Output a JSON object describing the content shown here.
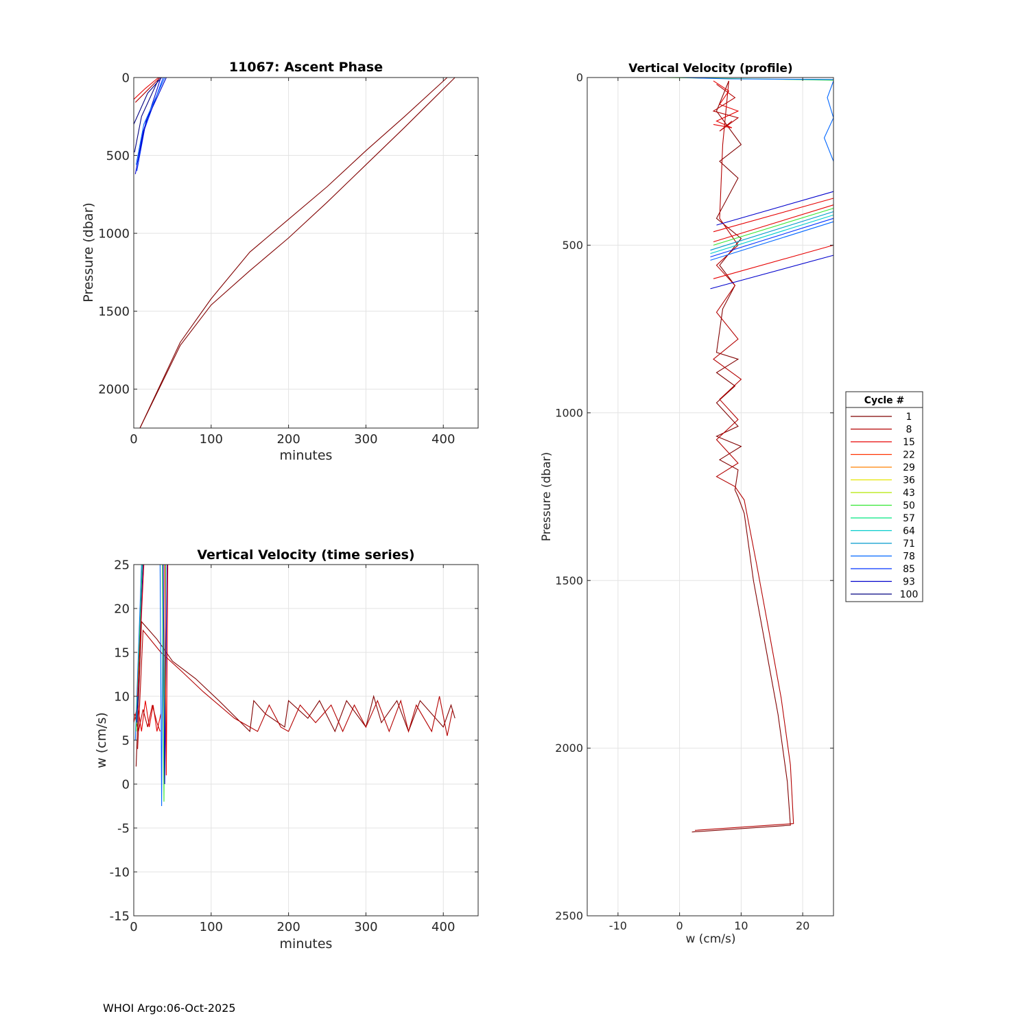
{
  "footer": "WHOI Argo:06-Oct-2025",
  "legend": {
    "title": "Cycle #",
    "entries": [
      "1",
      "8",
      "15",
      "22",
      "29",
      "36",
      "43",
      "50",
      "57",
      "64",
      "71",
      "78",
      "85",
      "93",
      "100"
    ],
    "colors": [
      "#800000",
      "#b30000",
      "#e60000",
      "#ff3300",
      "#ff8000",
      "#e6e600",
      "#b3e600",
      "#33e633",
      "#00e680",
      "#00cccc",
      "#0099cc",
      "#0066ff",
      "#0033ff",
      "#0000cc",
      "#000080"
    ]
  },
  "chart_data": [
    {
      "type": "line",
      "title": "11067: Ascent Phase",
      "xlabel": "minutes",
      "ylabel": "Pressure (dbar)",
      "xlim": [
        0,
        445
      ],
      "ylim": [
        0,
        2250
      ],
      "y_reversed": true,
      "xticks": [
        0,
        100,
        200,
        300,
        400
      ],
      "yticks": [
        0,
        500,
        1000,
        1500,
        2000
      ],
      "grid": true,
      "series": [
        {
          "x": [
            8,
            60,
            100,
            150,
            200,
            250,
            300,
            350,
            405
          ],
          "y": [
            2250,
            1700,
            1420,
            1120,
            910,
            700,
            470,
            250,
            0
          ],
          "color": "#800000"
        },
        {
          "x": [
            8,
            60,
            100,
            150,
            200,
            250,
            300,
            350,
            415
          ],
          "y": [
            2250,
            1720,
            1460,
            1240,
            1030,
            800,
            560,
            320,
            0
          ],
          "color": "#800000"
        },
        {
          "x": [
            2,
            12,
            35
          ],
          "y": [
            620,
            350,
            0
          ],
          "color": "#0000cc"
        },
        {
          "x": [
            4,
            14,
            38
          ],
          "y": [
            600,
            330,
            0
          ],
          "color": "#0033ff"
        },
        {
          "x": [
            3,
            13,
            40
          ],
          "y": [
            560,
            300,
            0
          ],
          "color": "#0066ff"
        },
        {
          "x": [
            5,
            16,
            42
          ],
          "y": [
            540,
            280,
            0
          ],
          "color": "#0000cc"
        },
        {
          "x": [
            1,
            10,
            33
          ],
          "y": [
            480,
            250,
            0
          ],
          "color": "#000080"
        },
        {
          "x": [
            0,
            18,
            36
          ],
          "y": [
            300,
            100,
            0
          ],
          "color": "#000080"
        },
        {
          "x": [
            0,
            15,
            32
          ],
          "y": [
            140,
            70,
            0
          ],
          "color": "#e60000"
        },
        {
          "x": [
            2,
            18,
            34
          ],
          "y": [
            160,
            80,
            0
          ],
          "color": "#b30000"
        }
      ]
    },
    {
      "type": "line",
      "title": "Vertical Velocity (time series)",
      "xlabel": "minutes",
      "ylabel": "w (cm/s)",
      "xlim": [
        0,
        445
      ],
      "ylim": [
        -15,
        25
      ],
      "xticks": [
        0,
        100,
        200,
        300,
        400
      ],
      "yticks": [
        -15,
        -10,
        -5,
        0,
        5,
        10,
        15,
        20,
        25
      ],
      "grid": true,
      "series": [
        {
          "x": [
            3,
            10,
            30,
            50,
            80,
            110,
            150,
            155,
            170,
            195,
            200,
            225,
            240,
            260,
            275,
            300,
            310,
            320,
            340,
            355,
            370,
            400,
            410,
            415
          ],
          "y": [
            2,
            18.5,
            16.5,
            14,
            12,
            9.5,
            6,
            9.5,
            8,
            6.5,
            9.5,
            7.5,
            9.5,
            6,
            9.5,
            6.5,
            10,
            7,
            9.5,
            6,
            9.5,
            6.5,
            9,
            7.5
          ],
          "color": "#800000"
        },
        {
          "x": [
            5,
            12,
            35,
            60,
            90,
            130,
            160,
            175,
            190,
            200,
            215,
            235,
            255,
            270,
            285,
            300,
            315,
            330,
            345,
            355,
            365,
            385,
            395,
            405,
            412
          ],
          "y": [
            4,
            17.5,
            15,
            13,
            10.5,
            7.5,
            6,
            9,
            6.5,
            6,
            9,
            7,
            9,
            6,
            9,
            6.5,
            9.5,
            6,
            9.5,
            6,
            9,
            6,
            10,
            5.5,
            8.5
          ],
          "color": "#b30000"
        },
        {
          "x": [
            0,
            5,
            10,
            15,
            20,
            25,
            30,
            35
          ],
          "y": [
            7,
            9,
            6,
            9.5,
            6.5,
            9,
            6,
            8
          ],
          "color": "#e60000"
        },
        {
          "x": [
            1,
            6,
            12,
            18,
            24,
            30,
            34
          ],
          "y": [
            8,
            6,
            8.5,
            6.5,
            9,
            7,
            6
          ],
          "color": "#b30000"
        },
        {
          "x": [
            2,
            10,
            12,
            34,
            36,
            38
          ],
          "y": [
            5,
            25,
            25,
            25,
            -2.5,
            25
          ],
          "color": "#0066ff"
        },
        {
          "x": [
            3,
            11,
            14,
            37,
            39,
            41
          ],
          "y": [
            6,
            25,
            25,
            25,
            -2,
            25
          ],
          "color": "#33e633"
        },
        {
          "x": [
            4,
            12,
            16,
            38,
            40,
            43
          ],
          "y": [
            7,
            25,
            25,
            25,
            0,
            25
          ],
          "color": "#0000cc"
        },
        {
          "x": [
            5,
            13,
            17,
            40,
            42,
            44
          ],
          "y": [
            10,
            25,
            25,
            25,
            1,
            25
          ],
          "color": "#e60000"
        }
      ]
    },
    {
      "type": "line",
      "title": "Vertical Velocity (profile)",
      "xlabel": "w (cm/s)",
      "ylabel": "Pressure (dbar)",
      "xlim": [
        -15,
        25
      ],
      "ylim": [
        0,
        2500
      ],
      "y_reversed": true,
      "xticks": [
        -10,
        0,
        10,
        20
      ],
      "yticks": [
        0,
        500,
        1000,
        1500,
        2000,
        2500
      ],
      "grid": true,
      "series": [
        {
          "x": [
            2,
            18,
            17.5,
            16,
            14,
            12,
            10.5,
            9.5,
            9,
            9.5,
            6.5,
            10,
            6,
            9.5,
            6,
            9,
            6,
            9.5,
            6,
            7,
            9,
            6.5,
            10,
            6,
            9.5,
            6.5,
            10,
            6,
            8
          ],
          "y": [
            2250,
            2230,
            2100,
            1900,
            1700,
            1500,
            1300,
            1250,
            1230,
            1170,
            1140,
            1100,
            1070,
            1040,
            970,
            920,
            880,
            840,
            820,
            690,
            620,
            560,
            480,
            420,
            300,
            250,
            200,
            100,
            10
          ],
          "color": "#800000"
        },
        {
          "x": [
            2.5,
            18.5,
            18,
            16.5,
            14.5,
            12.5,
            10.5,
            9,
            6,
            9.5,
            6,
            9.5,
            6.5,
            10,
            5.5,
            9.5,
            6,
            9,
            6,
            9.5,
            6.5,
            7,
            8
          ],
          "y": [
            2245,
            2225,
            2050,
            1850,
            1650,
            1450,
            1260,
            1220,
            1190,
            1150,
            1080,
            1020,
            960,
            900,
            840,
            780,
            700,
            620,
            560,
            500,
            420,
            200,
            10
          ],
          "color": "#b30000"
        },
        {
          "x": [
            5,
            25
          ],
          "y": [
            630,
            530
          ],
          "color": "#0000cc"
        },
        {
          "x": [
            5.5,
            25
          ],
          "y": [
            600,
            500
          ],
          "color": "#e60000"
        },
        {
          "x": [
            5,
            25
          ],
          "y": [
            545,
            430
          ],
          "color": "#0066ff"
        },
        {
          "x": [
            5,
            25
          ],
          "y": [
            535,
            420
          ],
          "color": "#0033ff"
        },
        {
          "x": [
            5,
            25
          ],
          "y": [
            525,
            410
          ],
          "color": "#00cccc"
        },
        {
          "x": [
            5,
            25
          ],
          "y": [
            515,
            400
          ],
          "color": "#0099cc"
        },
        {
          "x": [
            5.5,
            25
          ],
          "y": [
            500,
            390
          ],
          "color": "#33e633"
        },
        {
          "x": [
            5.5,
            25
          ],
          "y": [
            490,
            380
          ],
          "color": "#e60000"
        },
        {
          "x": [
            5.5,
            25
          ],
          "y": [
            460,
            360
          ],
          "color": "#e60000"
        },
        {
          "x": [
            6,
            25
          ],
          "y": [
            440,
            340
          ],
          "color": "#0000cc"
        },
        {
          "x": [
            -2.5,
            5,
            25
          ],
          "y": [
            0,
            2,
            8
          ],
          "color": "#33e633"
        },
        {
          "x": [
            0,
            8,
            25
          ],
          "y": [
            0,
            4,
            6
          ],
          "color": "#0066ff"
        },
        {
          "x": [
            5.5,
            8,
            6.5,
            9.5,
            6,
            8.5,
            5.5
          ],
          "y": [
            10,
            40,
            80,
            100,
            130,
            150,
            140
          ],
          "color": "#e60000"
        },
        {
          "x": [
            6,
            9,
            5.5,
            9.5,
            6.5,
            8.5
          ],
          "y": [
            20,
            60,
            100,
            120,
            160,
            130
          ],
          "color": "#b30000"
        },
        {
          "x": [
            25,
            24,
            25,
            23.5,
            25
          ],
          "y": [
            10,
            60,
            120,
            180,
            250
          ],
          "color": "#0066ff"
        }
      ]
    }
  ]
}
